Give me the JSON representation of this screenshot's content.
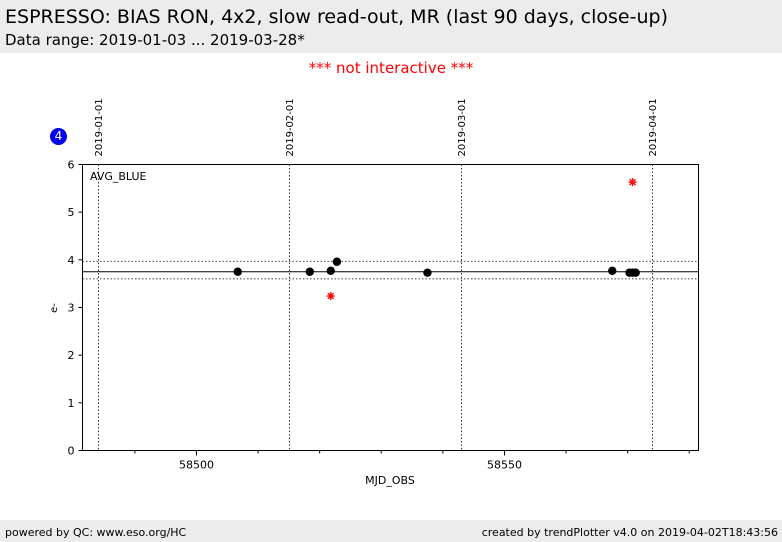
{
  "header": {
    "title": "ESPRESSO: BIAS RON, 4x2, slow read-out, MR (last 90 days, close-up)",
    "subtitle": "Data range: 2019-01-03 ... 2019-03-28*"
  },
  "notice": "*** not interactive ***",
  "badge": "4",
  "footer": {
    "left": "powered by QC: www.eso.org/HC",
    "right": "created by trendPlotter v4.0 on 2019-04-02T18:43:56"
  },
  "colors": {
    "normal": "#000000",
    "outlier": "#ff0000",
    "badge": "#0000ee",
    "band": "#ececec"
  },
  "chart_data": {
    "type": "scatter",
    "panel_label": "AVG_BLUE",
    "xlabel": "MJD_OBS",
    "ylabel": "e-",
    "xlim": [
      58481.5,
      58581.5
    ],
    "ylim": [
      0,
      6
    ],
    "x_ticks": [
      58500,
      58550
    ],
    "x_minor_ticks": [
      58490,
      58510,
      58520,
      58530,
      58540,
      58560,
      58570,
      58580
    ],
    "y_ticks": [
      0,
      1,
      2,
      3,
      4,
      5,
      6
    ],
    "date_markers": [
      {
        "x": 58484,
        "label": "2019-01-01"
      },
      {
        "x": 58515,
        "label": "2019-02-01"
      },
      {
        "x": 58543,
        "label": "2019-03-01"
      },
      {
        "x": 58574,
        "label": "2019-04-01"
      }
    ],
    "reference_lines": {
      "mean": 3.75,
      "upper": 3.97,
      "lower": 3.6
    },
    "series": [
      {
        "marker": "circle",
        "points": [
          {
            "x": 58506.7,
            "y": 3.75
          },
          {
            "x": 58518.4,
            "y": 3.75
          },
          {
            "x": 58521.8,
            "y": 3.77
          },
          {
            "x": 58522.8,
            "y": 3.96
          },
          {
            "x": 58537.5,
            "y": 3.73
          },
          {
            "x": 58567.5,
            "y": 3.77
          },
          {
            "x": 58570.3,
            "y": 3.73
          },
          {
            "x": 58570.8,
            "y": 3.73
          },
          {
            "x": 58571.3,
            "y": 3.73
          }
        ]
      },
      {
        "marker": "asterisk",
        "points": [
          {
            "x": 58521.8,
            "y": 3.24
          },
          {
            "x": 58570.8,
            "y": 5.63
          }
        ]
      }
    ]
  }
}
